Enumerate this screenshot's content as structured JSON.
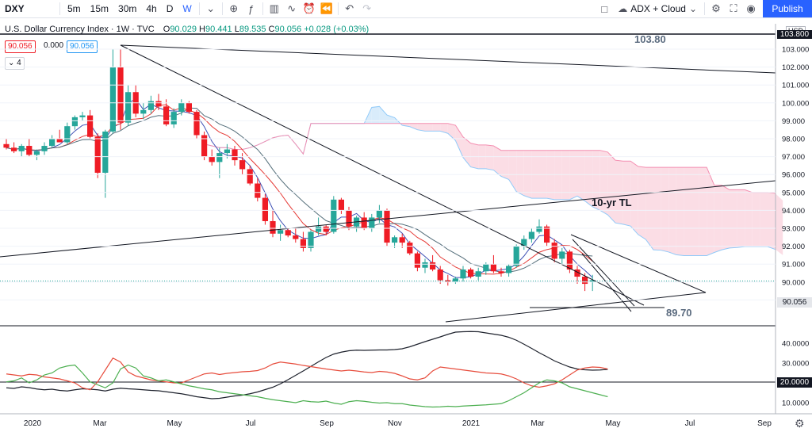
{
  "toolbar": {
    "symbol": "DXY",
    "intervals": [
      "5m",
      "15m",
      "30m",
      "4h",
      "D",
      "W"
    ],
    "active_interval": "W",
    "indicator_label": "ADX + Cloud",
    "publish_label": "Publish"
  },
  "legend": {
    "title": "U.S. Dollar Currency Index · 1W · TVC",
    "o_label": "O",
    "o": "90.029",
    "h_label": "H",
    "h": "90.441",
    "l_label": "L",
    "l": "89.535",
    "c_label": "C",
    "c": "90.056",
    "change": "+0.028 (+0.03%)",
    "badge_price": "90.056",
    "badge_zero": "0.000",
    "badge_price2": "90.056",
    "badge_count": "4"
  },
  "colors": {
    "up": "#26a69a",
    "down": "#ef1c25",
    "accent": "#2962ff",
    "cloud_bull": "#d9ecfb",
    "cloud_bear": "#fbdde5"
  },
  "chart_data": [
    {
      "type": "candlestick",
      "title": "U.S. Dollar Currency Index",
      "currency_label": "USD",
      "x_ticks": [
        "2020",
        "Mar",
        "May",
        "Jul",
        "Sep",
        "Nov",
        "2021",
        "Mar",
        "May",
        "Jul",
        "Sep"
      ],
      "y_ticks": [
        "103.000",
        "102.000",
        "101.000",
        "100.000",
        "99.000",
        "98.000",
        "97.000",
        "96.000",
        "95.000",
        "94.000",
        "93.000",
        "92.000",
        "91.000",
        "90.000",
        "89.000"
      ],
      "ylim": [
        88.5,
        104.0
      ],
      "last_price": "90.056",
      "top_price_label": "103.800",
      "annotations": {
        "high_level": "103.80",
        "tl_label": "10-yr TL",
        "low_level": "89.70"
      },
      "candles": [
        {
          "o": 97.7,
          "h": 98.0,
          "l": 97.4,
          "c": 97.5
        },
        {
          "o": 97.5,
          "h": 97.8,
          "l": 97.2,
          "c": 97.3
        },
        {
          "o": 97.3,
          "h": 97.7,
          "l": 97.0,
          "c": 97.6
        },
        {
          "o": 97.6,
          "h": 98.0,
          "l": 97.0,
          "c": 97.1
        },
        {
          "o": 97.1,
          "h": 97.4,
          "l": 96.8,
          "c": 97.3
        },
        {
          "o": 97.3,
          "h": 97.8,
          "l": 97.1,
          "c": 97.6
        },
        {
          "o": 97.6,
          "h": 98.2,
          "l": 97.5,
          "c": 98.0
        },
        {
          "o": 98.0,
          "h": 98.5,
          "l": 97.8,
          "c": 97.8
        },
        {
          "o": 97.8,
          "h": 98.9,
          "l": 97.7,
          "c": 98.7
        },
        {
          "o": 98.7,
          "h": 99.3,
          "l": 98.5,
          "c": 99.2
        },
        {
          "o": 99.2,
          "h": 99.5,
          "l": 99.0,
          "c": 99.3
        },
        {
          "o": 99.3,
          "h": 99.6,
          "l": 98.0,
          "c": 98.1
        },
        {
          "o": 98.1,
          "h": 98.3,
          "l": 95.8,
          "c": 96.1
        },
        {
          "o": 96.1,
          "h": 98.5,
          "l": 94.7,
          "c": 98.4
        },
        {
          "o": 98.4,
          "h": 103.0,
          "l": 98.3,
          "c": 102.0
        },
        {
          "o": 102.0,
          "h": 103.0,
          "l": 98.5,
          "c": 98.9
        },
        {
          "o": 98.9,
          "h": 101.0,
          "l": 98.7,
          "c": 100.6
        },
        {
          "o": 100.6,
          "h": 101.0,
          "l": 99.2,
          "c": 99.4
        },
        {
          "o": 99.4,
          "h": 100.0,
          "l": 99.1,
          "c": 99.6
        },
        {
          "o": 99.6,
          "h": 100.4,
          "l": 99.4,
          "c": 100.1
        },
        {
          "o": 100.1,
          "h": 100.5,
          "l": 99.6,
          "c": 99.8
        },
        {
          "o": 99.8,
          "h": 100.2,
          "l": 98.7,
          "c": 98.8
        },
        {
          "o": 98.8,
          "h": 99.7,
          "l": 98.6,
          "c": 99.5
        },
        {
          "o": 99.5,
          "h": 100.2,
          "l": 99.3,
          "c": 100.0
        },
        {
          "o": 100.0,
          "h": 100.1,
          "l": 99.4,
          "c": 99.5
        },
        {
          "o": 99.5,
          "h": 99.6,
          "l": 98.0,
          "c": 98.2
        },
        {
          "o": 98.2,
          "h": 98.4,
          "l": 96.8,
          "c": 97.0
        },
        {
          "o": 97.0,
          "h": 97.4,
          "l": 96.5,
          "c": 96.7
        },
        {
          "o": 96.7,
          "h": 97.5,
          "l": 95.8,
          "c": 97.2
        },
        {
          "o": 97.2,
          "h": 97.7,
          "l": 96.9,
          "c": 97.4
        },
        {
          "o": 97.4,
          "h": 97.6,
          "l": 96.5,
          "c": 96.8
        },
        {
          "o": 96.8,
          "h": 97.2,
          "l": 96.0,
          "c": 96.3
        },
        {
          "o": 96.3,
          "h": 96.5,
          "l": 95.4,
          "c": 95.5
        },
        {
          "o": 95.5,
          "h": 95.8,
          "l": 94.5,
          "c": 94.7
        },
        {
          "o": 94.7,
          "h": 94.9,
          "l": 93.2,
          "c": 93.4
        },
        {
          "o": 93.4,
          "h": 94.0,
          "l": 92.5,
          "c": 92.7
        },
        {
          "o": 92.7,
          "h": 93.2,
          "l": 92.3,
          "c": 92.9
        },
        {
          "o": 92.9,
          "h": 93.0,
          "l": 92.5,
          "c": 92.6
        },
        {
          "o": 92.6,
          "h": 93.0,
          "l": 92.2,
          "c": 92.4
        },
        {
          "o": 92.4,
          "h": 92.8,
          "l": 91.7,
          "c": 91.9
        },
        {
          "o": 91.9,
          "h": 92.9,
          "l": 91.7,
          "c": 92.8
        },
        {
          "o": 92.8,
          "h": 93.6,
          "l": 92.6,
          "c": 93.1
        },
        {
          "o": 93.1,
          "h": 93.2,
          "l": 92.6,
          "c": 92.8
        },
        {
          "o": 92.8,
          "h": 94.8,
          "l": 92.7,
          "c": 94.6
        },
        {
          "o": 94.6,
          "h": 94.7,
          "l": 93.8,
          "c": 94.0
        },
        {
          "o": 94.0,
          "h": 94.2,
          "l": 92.9,
          "c": 93.1
        },
        {
          "o": 93.1,
          "h": 93.7,
          "l": 92.8,
          "c": 93.6
        },
        {
          "o": 93.6,
          "h": 93.9,
          "l": 92.9,
          "c": 93.0
        },
        {
          "o": 93.0,
          "h": 93.8,
          "l": 92.8,
          "c": 93.6
        },
        {
          "o": 93.6,
          "h": 94.3,
          "l": 93.3,
          "c": 94.0
        },
        {
          "o": 94.0,
          "h": 94.1,
          "l": 92.0,
          "c": 92.2
        },
        {
          "o": 92.2,
          "h": 92.6,
          "l": 91.9,
          "c": 92.5
        },
        {
          "o": 92.5,
          "h": 92.7,
          "l": 91.9,
          "c": 92.2
        },
        {
          "o": 92.2,
          "h": 92.3,
          "l": 91.5,
          "c": 91.6
        },
        {
          "o": 91.6,
          "h": 91.7,
          "l": 90.6,
          "c": 90.8
        },
        {
          "o": 90.8,
          "h": 91.3,
          "l": 90.5,
          "c": 91.1
        },
        {
          "o": 91.1,
          "h": 91.5,
          "l": 90.6,
          "c": 90.7
        },
        {
          "o": 90.7,
          "h": 90.9,
          "l": 89.9,
          "c": 90.1
        },
        {
          "o": 90.1,
          "h": 90.4,
          "l": 89.8,
          "c": 90.0
        },
        {
          "o": 90.0,
          "h": 90.3,
          "l": 89.9,
          "c": 90.2
        },
        {
          "o": 90.2,
          "h": 90.9,
          "l": 90.0,
          "c": 90.7
        },
        {
          "o": 90.7,
          "h": 90.8,
          "l": 90.2,
          "c": 90.3
        },
        {
          "o": 90.3,
          "h": 90.8,
          "l": 90.1,
          "c": 90.6
        },
        {
          "o": 90.6,
          "h": 91.1,
          "l": 90.4,
          "c": 91.0
        },
        {
          "o": 91.0,
          "h": 91.5,
          "l": 90.5,
          "c": 90.6
        },
        {
          "o": 90.6,
          "h": 90.8,
          "l": 90.3,
          "c": 90.5
        },
        {
          "o": 90.5,
          "h": 91.0,
          "l": 90.3,
          "c": 90.9
        },
        {
          "o": 90.9,
          "h": 92.1,
          "l": 90.8,
          "c": 92.0
        },
        {
          "o": 92.0,
          "h": 92.6,
          "l": 91.8,
          "c": 92.4
        },
        {
          "o": 92.4,
          "h": 93.0,
          "l": 92.2,
          "c": 92.8
        },
        {
          "o": 92.8,
          "h": 93.5,
          "l": 92.7,
          "c": 93.1
        },
        {
          "o": 93.1,
          "h": 93.2,
          "l": 92.0,
          "c": 92.2
        },
        {
          "o": 92.2,
          "h": 92.4,
          "l": 91.1,
          "c": 91.3
        },
        {
          "o": 91.3,
          "h": 91.9,
          "l": 91.0,
          "c": 91.7
        },
        {
          "o": 91.7,
          "h": 91.8,
          "l": 90.5,
          "c": 90.7
        },
        {
          "o": 90.7,
          "h": 90.9,
          "l": 89.9,
          "c": 90.3
        },
        {
          "o": 90.3,
          "h": 90.5,
          "l": 89.5,
          "c": 89.9
        },
        {
          "o": 90.0,
          "h": 90.4,
          "l": 89.5,
          "c": 90.1
        }
      ]
    },
    {
      "type": "line",
      "title": "",
      "y_ticks": [
        "40.0000",
        "30.0000",
        "20.0000",
        "10.0000"
      ],
      "ylim": [
        5,
        47
      ],
      "reference_level": "20.0000",
      "series": [
        {
          "color": "#1e222d",
          "values": [
            17.5,
            17.2,
            18.0,
            17.6,
            16.9,
            16.5,
            16.8,
            16.2,
            15.9,
            16.5,
            17.0,
            16.8,
            16.5,
            15.9,
            16.8,
            17.3,
            17.0,
            16.8,
            16.5,
            16.2,
            16.0,
            15.5,
            15.0,
            14.5,
            13.8,
            13.0,
            12.5,
            12.0,
            12.2,
            12.8,
            13.4,
            13.8,
            14.5,
            15.4,
            16.6,
            17.8,
            19.5,
            21.6,
            23.8,
            26.0,
            28.3,
            30.6,
            32.8,
            34.5,
            35.5,
            36.2,
            36.5,
            36.4,
            36.5,
            36.6,
            36.6,
            36.8,
            37.2,
            38.2,
            39.5,
            40.8,
            42.0,
            43.2,
            44.5,
            45.6,
            45.8,
            45.9,
            45.8,
            45.2,
            44.6,
            44.0,
            43.0,
            41.5,
            39.5,
            37.4,
            35.2,
            33.2,
            31.1,
            29.5,
            28.0,
            27.0,
            26.6,
            26.4,
            26.5,
            26.8
          ]
        },
        {
          "color": "#e74c3c",
          "values": [
            24.5,
            24.0,
            23.5,
            24.3,
            24.0,
            23.0,
            22.5,
            22.0,
            21.0,
            20.0,
            17.5,
            16.5,
            20.5,
            26.5,
            32.5,
            30.5,
            25.5,
            23.5,
            22.5,
            21.5,
            21.0,
            20.5,
            20.0,
            20.0,
            21.5,
            23.0,
            24.5,
            25.0,
            24.2,
            24.8,
            25.2,
            25.6,
            25.8,
            26.2,
            27.5,
            29.5,
            30.5,
            30.0,
            29.5,
            28.8,
            28.2,
            27.6,
            27.0,
            26.5,
            26.0,
            26.4,
            26.0,
            25.5,
            25.2,
            25.8,
            25.5,
            24.8,
            23.5,
            22.0,
            21.5,
            22.5,
            26.0,
            28.0,
            27.5,
            27.0,
            26.5,
            26.0,
            25.5,
            25.0,
            24.8,
            24.5,
            23.5,
            22.0,
            20.0,
            18.5,
            17.8,
            18.5,
            19.5,
            21.5,
            24.0,
            26.5,
            27.5,
            28.0,
            27.8,
            27.0
          ]
        },
        {
          "color": "#4caf50",
          "values": [
            20.5,
            21.0,
            22.5,
            20.0,
            21.5,
            24.0,
            25.0,
            27.5,
            28.5,
            29.0,
            25.0,
            20.5,
            19.0,
            17.5,
            20.0,
            27.0,
            29.0,
            27.5,
            23.5,
            22.5,
            21.0,
            21.5,
            20.5,
            19.5,
            18.5,
            17.8,
            17.0,
            16.5,
            15.5,
            15.0,
            14.5,
            14.0,
            13.5,
            13.0,
            12.2,
            11.5,
            11.0,
            10.5,
            10.0,
            11.0,
            10.5,
            10.3,
            10.8,
            9.8,
            9.2,
            10.5,
            11.0,
            10.7,
            10.2,
            9.8,
            10.0,
            9.5,
            9.5,
            8.8,
            8.4,
            8.0,
            7.8,
            7.9,
            8.2,
            8.0,
            8.3,
            8.5,
            8.7,
            8.9,
            9.2,
            9.5,
            11.0,
            13.0,
            15.0,
            17.5,
            20.0,
            21.5,
            21.0,
            20.0,
            18.0,
            17.0,
            16.0,
            15.0,
            14.0,
            13.0
          ]
        }
      ]
    }
  ]
}
